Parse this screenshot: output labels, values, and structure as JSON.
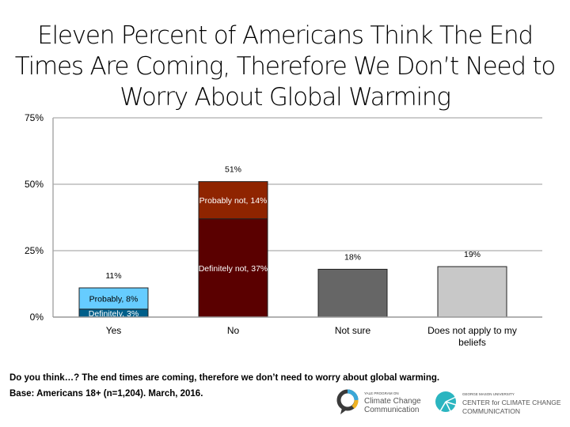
{
  "title": "Eleven Percent of Americans Think The End Times Are Coming, Therefore We Don’t Need to Worry About Global Warming",
  "chart_data": {
    "type": "stacked-bar",
    "title": "Eleven Percent of Americans Think The End Times Are Coming, Therefore We Don’t Need to Worry About Global Warming",
    "categories": [
      "Yes",
      "No",
      "Not sure",
      "Does not apply to my beliefs"
    ],
    "ylim": [
      0,
      75
    ],
    "yticks": [
      "0%",
      "25%",
      "50%",
      "75%"
    ],
    "ytick_values": [
      0,
      25,
      50,
      75
    ],
    "grid": true,
    "totals": [
      "11%",
      "51%",
      "18%",
      "19%"
    ],
    "bars": [
      {
        "category": "Yes",
        "segments": [
          {
            "label": "Definitely, 3%",
            "value": 3,
            "color": "#005f8a",
            "text_color": "#ffffff"
          },
          {
            "label": "Probably, 8%",
            "value": 8,
            "color": "#66ccff",
            "text_color": "#000000"
          }
        ]
      },
      {
        "category": "No",
        "segments": [
          {
            "label": "Definitely not, 37%",
            "value": 37,
            "color": "#5a0000",
            "text_color": "#ffffff"
          },
          {
            "label": "Probably not, 14%",
            "value": 14,
            "color": "#8f2400",
            "text_color": "#ffffff"
          }
        ]
      },
      {
        "category": "Not sure",
        "segments": [
          {
            "label": "",
            "value": 18,
            "color": "#666666",
            "text_color": "#ffffff"
          }
        ]
      },
      {
        "category": "Does not apply to my beliefs",
        "segments": [
          {
            "label": "",
            "value": 19,
            "color": "#c8c8c8",
            "text_color": "#000000"
          }
        ]
      }
    ]
  },
  "footer": {
    "question": "Do you think…? The end times are coming, therefore we don’t need to worry about global warming.",
    "base": "Base: Americans 18+ (n=1,204). March, 2016."
  },
  "logos": {
    "yale_small": "YALE PROGRAM ON",
    "yale_line1": "Climate Change",
    "yale_line2": "Communication",
    "gmu_small": "GEORGE MASON UNIVERSITY",
    "gmu_line1": "CENTER for CLIMATE CHANGE",
    "gmu_line2": "COMMUNICATION"
  }
}
